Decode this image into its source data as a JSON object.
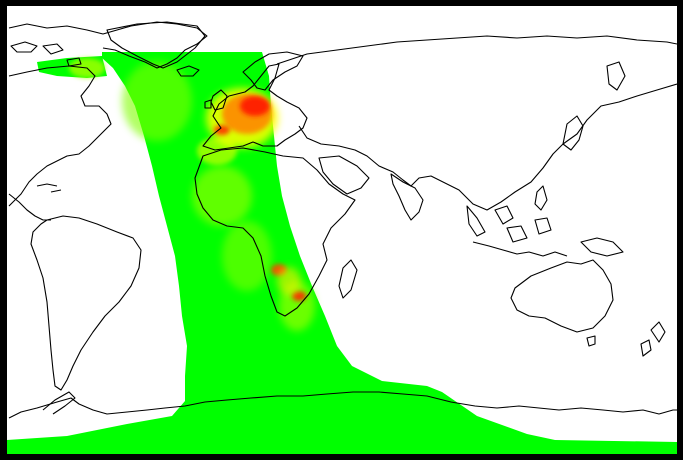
{
  "map": {
    "projection": "equirectangular",
    "background_color": "#ffffff",
    "frame_color": "#000000",
    "coastline_color": "#000000",
    "colormap": [
      "#00ff00",
      "#7fff00",
      "#ffff00",
      "#ff8000",
      "#ff0000"
    ]
  }
}
